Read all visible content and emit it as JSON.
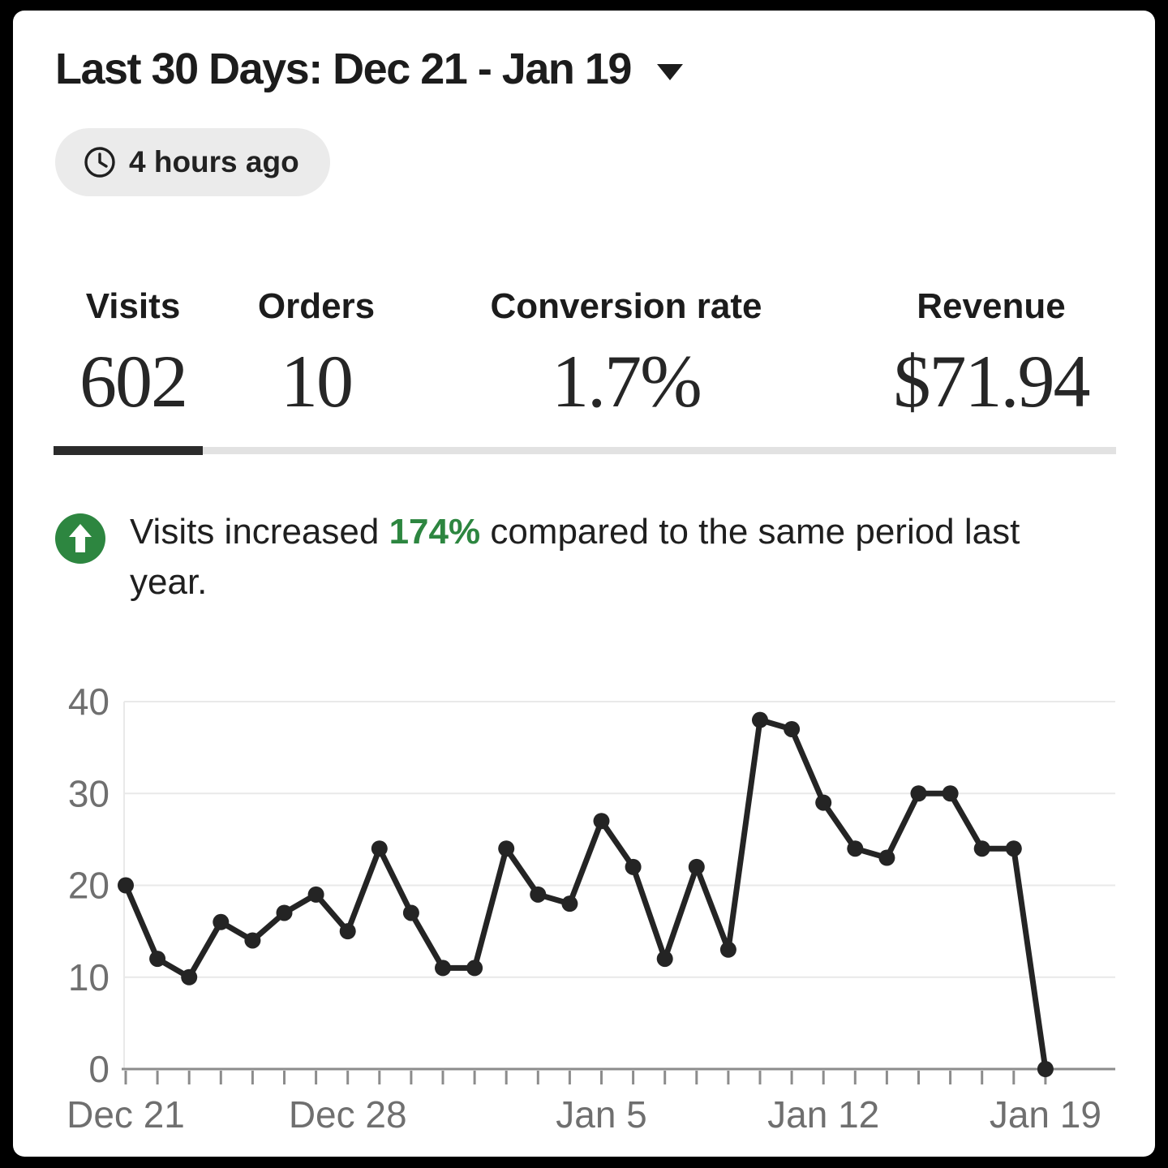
{
  "header": {
    "title": "Last 30 Days: Dec 21 - Jan 19",
    "dropdown_icon": "caret-down-icon",
    "updated_badge": {
      "icon": "clock-icon",
      "label": "4 hours ago"
    }
  },
  "stats": [
    {
      "label": "Visits",
      "value": "602",
      "active": true
    },
    {
      "label": "Orders",
      "value": "10",
      "active": false
    },
    {
      "label": "Conversion rate",
      "value": "1.7%",
      "active": false
    },
    {
      "label": "Revenue",
      "value": "$71.94",
      "active": false
    }
  ],
  "insight": {
    "icon": "arrow-up-circle-icon",
    "prefix": "Visits increased ",
    "highlight": "174%",
    "suffix": " compared to the same period last year.",
    "highlight_color": "#2d8640"
  },
  "chart_data": {
    "type": "line",
    "title": "Visits per day, Dec 21 - Jan 19",
    "series_name": "Visits",
    "values": [
      20,
      12,
      10,
      16,
      14,
      17,
      19,
      15,
      24,
      17,
      11,
      11,
      24,
      19,
      18,
      27,
      22,
      12,
      22,
      13,
      38,
      37,
      29,
      24,
      23,
      30,
      30,
      24,
      24,
      0
    ],
    "x_tick_labels": [
      {
        "label": "Dec 21",
        "index": 0
      },
      {
        "label": "Dec 28",
        "index": 7
      },
      {
        "label": "Jan 5",
        "index": 15
      },
      {
        "label": "Jan 12",
        "index": 22
      },
      {
        "label": "Jan 19",
        "index": 29
      }
    ],
    "y_ticks": [
      0,
      10,
      20,
      30,
      40
    ],
    "ylim": [
      0,
      40
    ],
    "grid": "horizontal",
    "legend": "none",
    "line_color": "#242424",
    "grid_color": "#e9e9e9",
    "axis_color": "#8c8c8c",
    "tick_label_color": "#6f6f6f",
    "point_radius": 10
  },
  "colors": {
    "card_bg": "#ffffff",
    "frame_bg": "#000000",
    "pill_bg": "#ebebeb",
    "accent_green": "#2d8640",
    "text_dark": "#1c1c1c",
    "tab_active": "#2b2b2b",
    "tab_track": "#e2e2e2"
  }
}
